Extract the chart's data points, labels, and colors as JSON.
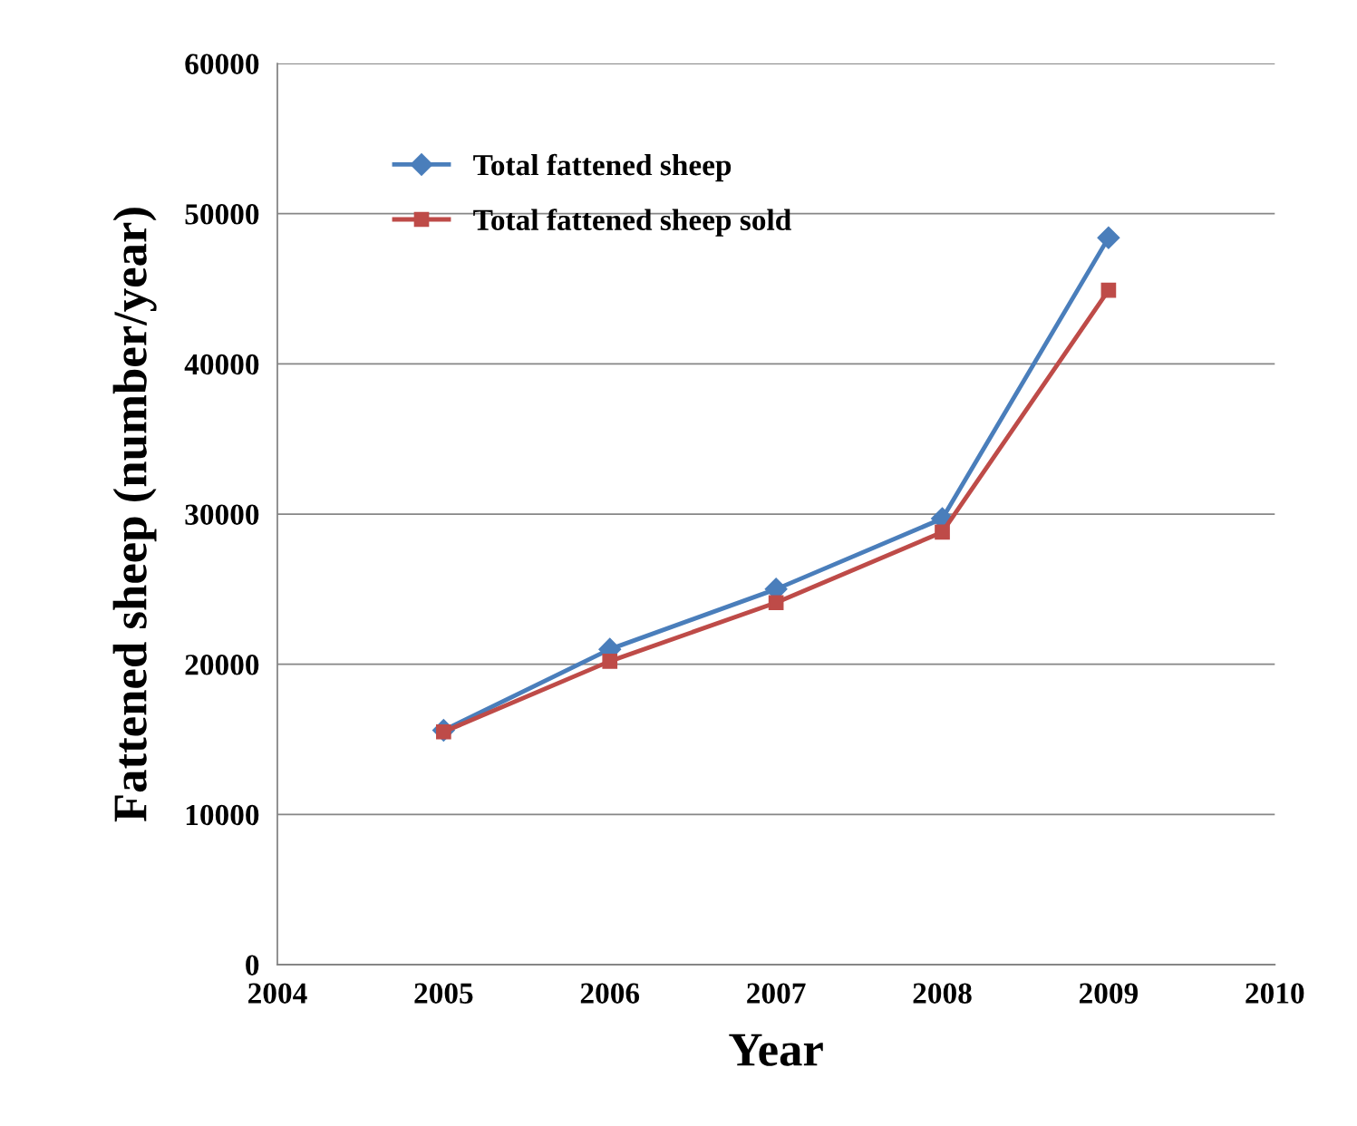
{
  "chart_data": {
    "type": "line",
    "xlabel": "Year",
    "ylabel": "Fattened sheep (number/year)",
    "x": [
      2005,
      2006,
      2007,
      2008,
      2009
    ],
    "series": [
      {
        "name": "Total fattened sheep",
        "color": "#4a7ebb",
        "marker": "diamond",
        "values": [
          15600,
          21000,
          25000,
          29700,
          48400
        ]
      },
      {
        "name": "Total fattened sheep sold",
        "color": "#be4b48",
        "marker": "square",
        "values": [
          15500,
          20200,
          24100,
          28800,
          44900
        ]
      }
    ],
    "xlim": [
      2004,
      2010
    ],
    "xticks": [
      2004,
      2005,
      2006,
      2007,
      2008,
      2009,
      2010
    ],
    "ylim": [
      0,
      60000
    ],
    "yticks": [
      0,
      10000,
      20000,
      30000,
      40000,
      50000,
      60000
    ],
    "grid": "y",
    "legend": "top left",
    "line_style": "solid"
  }
}
